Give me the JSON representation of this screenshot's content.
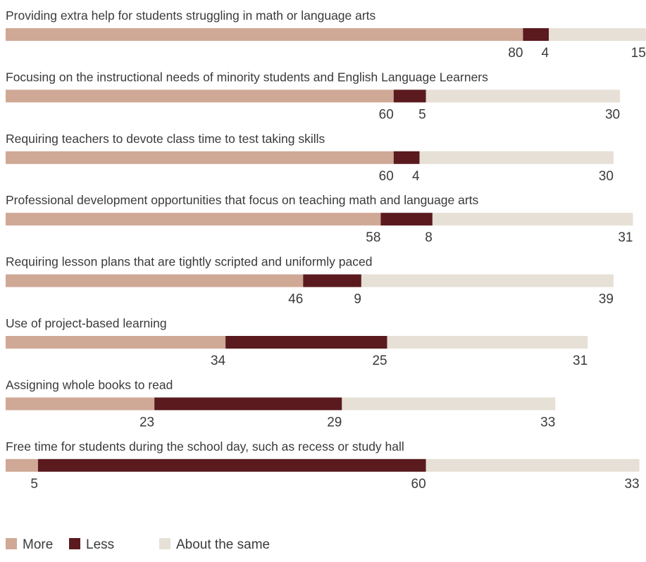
{
  "chart_data": {
    "type": "bar",
    "orientation": "horizontal",
    "stacked": true,
    "grid": false,
    "legend_position": "bottom-left",
    "categories": [
      "Providing extra help for students struggling in math or language arts",
      "Focusing on the instructional needs of minority students and English Language Learners",
      "Requiring teachers to devote class time to test taking skills",
      "Professional development opportunities that focus on teaching math and language arts",
      "Requiring lesson plans that are tightly scripted and uniformly paced",
      "Use of project-based learning",
      "Assigning whole books to read",
      "Free time for students during the school day, such as recess or study hall"
    ],
    "series": [
      {
        "name": "More",
        "color": "#cfa896",
        "values": [
          80,
          60,
          60,
          58,
          46,
          34,
          23,
          5
        ]
      },
      {
        "name": "Less",
        "color": "#5a1a1e",
        "values": [
          4,
          5,
          4,
          8,
          9,
          25,
          29,
          60
        ]
      },
      {
        "name": "About the same",
        "color": "#e6e0d6",
        "values": [
          15,
          30,
          30,
          31,
          39,
          31,
          33,
          33
        ]
      }
    ],
    "xlim": [
      0,
      98
    ]
  }
}
